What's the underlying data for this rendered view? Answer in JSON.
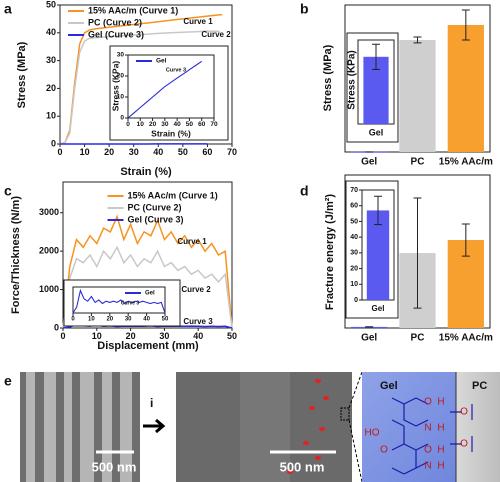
{
  "chart_data": [
    {
      "type": "line",
      "panel_label": "a",
      "x_label": "Strain (%)",
      "y_label": "Stress (MPa)",
      "x": [
        0,
        2,
        4,
        6,
        8,
        10,
        12,
        15,
        20,
        25,
        30,
        35,
        40,
        45,
        50,
        55,
        60,
        65,
        66
      ],
      "series": [
        {
          "name": "15% AAc/m (Curve 1)",
          "label": "Curve 1",
          "color": "#f7931e",
          "values": [
            0,
            0.5,
            5,
            22,
            36,
            40,
            41,
            41.5,
            42,
            42.5,
            43,
            43.5,
            44,
            44.5,
            45,
            45.5,
            46,
            46.5,
            46.5
          ]
        },
        {
          "name": "PC (Curve 2)",
          "label": "Curve 2",
          "color": "#c8c8c8",
          "values": [
            0,
            0.5,
            4,
            20,
            33,
            37,
            38,
            38.3,
            38.6,
            38.9,
            39.2,
            39.5,
            39.8,
            40,
            40.2,
            40.4,
            40.6,
            40.5,
            null
          ]
        },
        {
          "name": "Gel (Curve 3)",
          "label": "Curve 3",
          "color": "#2b2bd9",
          "values": [
            0,
            0.001,
            0.002,
            0.003,
            0.004,
            0.005,
            0.006,
            0.0075,
            0.01,
            0.0125,
            0.015,
            0.017,
            0.019,
            0.021,
            0.023,
            0.025,
            0.027,
            null,
            null
          ]
        }
      ],
      "xlim": [
        0,
        70
      ],
      "xticks": [
        0,
        10,
        20,
        30,
        40,
        50,
        60,
        70
      ],
      "ylim": [
        0,
        50
      ],
      "yticks": [
        0,
        10,
        20,
        30,
        40,
        50
      ],
      "legend": "upper left"
    },
    {
      "type": "line",
      "x_label": "Strain (%)",
      "y_label": "Stress (KPa)",
      "x": [
        0,
        5,
        10,
        15,
        20,
        25,
        30,
        35,
        40,
        45,
        50,
        55,
        60
      ],
      "series": [
        {
          "name": "Gel",
          "label": "Curve 3",
          "color": "#2b2bd9",
          "values": [
            0,
            2.5,
            5,
            7.5,
            10,
            12.5,
            15,
            17,
            19,
            21,
            23,
            25,
            27
          ]
        }
      ],
      "xlim": [
        0,
        70
      ],
      "xticks": [
        0,
        10,
        20,
        30,
        40,
        50,
        60,
        70
      ],
      "ylim": [
        0,
        30
      ],
      "yticks": [
        0,
        10,
        20,
        30
      ],
      "legend": "upper left"
    },
    {
      "type": "bar",
      "panel_label": "b",
      "y_label": "Stress (MPa)",
      "categories": [
        "Gel",
        "PC",
        "15% AAc/m"
      ],
      "values": [
        0.032,
        38.1,
        43.2
      ],
      "errors": [
        0.006,
        1.0,
        5.1
      ],
      "colors": [
        "#5a5af0",
        "#cfcfcf",
        "#f7a030"
      ],
      "ylim": [
        0,
        50
      ]
    },
    {
      "type": "bar",
      "y_label": "Stress (KPa)",
      "categories": [
        "Gel"
      ],
      "values": [
        32
      ],
      "errors": [
        6
      ],
      "colors": [
        "#5a5af0"
      ],
      "ylim": [
        0,
        40
      ]
    },
    {
      "type": "line",
      "panel_label": "c",
      "x_label": "Displacement (mm)",
      "y_label": "Force/Thickness (N/m)",
      "x": [
        0,
        2,
        4,
        6,
        8,
        10,
        12,
        14,
        16,
        18,
        20,
        22,
        24,
        26,
        28,
        30,
        32,
        34,
        36,
        38,
        40,
        42,
        44,
        46,
        48,
        50
      ],
      "series": [
        {
          "name": "15% AAc/m (Curve 1)",
          "label": "Curve 1",
          "color": "#f7931e",
          "values": [
            0,
            1600,
            2300,
            2100,
            2400,
            2200,
            2600,
            2500,
            2900,
            2300,
            2700,
            2200,
            2500,
            2400,
            2800,
            2300,
            2500,
            2200,
            2400,
            2100,
            2300,
            2000,
            2200,
            1900,
            2000,
            0
          ]
        },
        {
          "name": "PC (Curve 2)",
          "label": "Curve 2",
          "color": "#c8c8c8",
          "values": [
            0,
            1300,
            1800,
            1700,
            1900,
            1600,
            2000,
            1800,
            2100,
            1700,
            1900,
            1600,
            1800,
            1700,
            2000,
            1600,
            1700,
            1500,
            1600,
            1400,
            1500,
            1300,
            1400,
            1200,
            1400,
            0
          ]
        },
        {
          "name": "Gel (Curve 3)",
          "label": "Curve 3",
          "color": "#2b2bd9",
          "values": [
            0,
            25,
            95,
            60,
            50,
            70,
            45,
            55,
            40,
            50,
            45,
            50,
            45,
            55,
            40,
            50,
            45,
            50,
            45,
            50,
            45,
            40,
            45,
            40,
            45,
            0
          ]
        }
      ],
      "xlim": [
        0,
        50
      ],
      "xticks": [
        0,
        10,
        20,
        30,
        40,
        50
      ],
      "ylim": [
        0,
        3800
      ],
      "yticks": [
        0,
        1000,
        2000,
        3000
      ],
      "legend": "upper center"
    },
    {
      "type": "line",
      "x": [
        0,
        2,
        4,
        6,
        8,
        10,
        12,
        14,
        16,
        18,
        20,
        22,
        24,
        26,
        28,
        30,
        32,
        34,
        36,
        38,
        40,
        42,
        44,
        46,
        48,
        50
      ],
      "series": [
        {
          "name": "Gel",
          "label": "Curve 3",
          "color": "#2b2bd9",
          "values": [
            0,
            25,
            95,
            60,
            50,
            70,
            45,
            55,
            40,
            50,
            45,
            50,
            45,
            55,
            40,
            50,
            45,
            50,
            45,
            50,
            45,
            40,
            45,
            40,
            45,
            0
          ]
        }
      ],
      "xlim": [
        0,
        50
      ],
      "xticks": [
        0,
        10,
        20,
        30,
        40,
        50
      ],
      "ylim": [
        0,
        110
      ],
      "legend": "upper right"
    },
    {
      "type": "bar",
      "panel_label": "d",
      "y_label": "Fracture energy (J/m²)",
      "categories": [
        "Gel",
        "PC",
        "15% AAc/m"
      ],
      "values": [
        57,
        3920,
        4600
      ],
      "errors": [
        9,
        2880,
        840
      ],
      "colors": [
        "#5a5af0",
        "#cfcfcf",
        "#f7a030"
      ],
      "ylim": [
        0,
        8000
      ]
    },
    {
      "type": "bar",
      "categories": [
        "Gel"
      ],
      "values": [
        57
      ],
      "errors": [
        9
      ],
      "colors": [
        "#5a5af0"
      ],
      "ylim": [
        0,
        70
      ],
      "yticks": [
        0,
        10,
        20,
        30,
        40,
        50,
        60,
        70
      ]
    }
  ],
  "panel_e": {
    "panel_label": "e",
    "arrow_label": "i",
    "scale_bar_left": "500 nm",
    "scale_bar_right": "500 nm",
    "schematic": {
      "left_label": "Gel",
      "right_label": "PC",
      "atoms": [
        "O",
        "H",
        "O",
        "N",
        "H",
        "HO",
        "O",
        "O",
        "H",
        "O",
        "N",
        "H"
      ]
    }
  }
}
